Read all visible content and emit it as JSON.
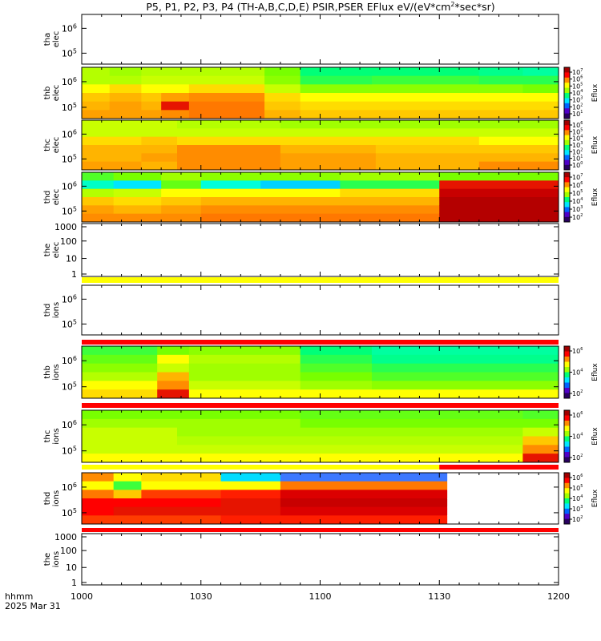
{
  "chart_data": {
    "type": "heatmap",
    "title": "P5, P1, P2, P3, P4 (TH-A,B,C,D,E) PSIR,PSER EFlux eV/(eV*cm",
    "title_sup": "2",
    "title_tail": "*sec*sr)",
    "x_axis": {
      "ticks": [
        "1000",
        "1030",
        "1100",
        "1130",
        "1200"
      ],
      "tick_minutes": [
        0,
        30,
        60,
        90,
        120
      ],
      "range_minutes": [
        0,
        120
      ],
      "label_line1": "hhmm",
      "label_line2": "2025 Mar 31"
    },
    "colorbar_label": "Eflux",
    "panels": [
      {
        "label1": "tha",
        "label2": "elec",
        "yticks": [
          "10",
          "10"
        ],
        "ysup": [
          "6",
          "5"
        ],
        "filled": false,
        "colorbar": null
      },
      {
        "label1": "thb",
        "label2": "elec",
        "yticks": [
          "10",
          "10"
        ],
        "ysup": [
          "6",
          "5"
        ],
        "filled": true,
        "colorbar": {
          "ticks": [
            "10",
            "10",
            "10",
            "10",
            "10",
            "10",
            "10"
          ],
          "sup": [
            "7",
            "6",
            "5",
            "4",
            "3",
            "2",
            "1"
          ]
        },
        "bins": [
          {
            "t0": 0,
            "t1": 7,
            "rows": [
              "#b4ff00",
              "#b4ff00",
              "#ffff00",
              "#ffc800",
              "#ffb400",
              "#ffa000"
            ]
          },
          {
            "t0": 7,
            "t1": 15,
            "rows": [
              "#a0ff00",
              "#b4ff00",
              "#ffdc00",
              "#ffb400",
              "#ffa000",
              "#ffa000"
            ]
          },
          {
            "t0": 15,
            "t1": 20,
            "rows": [
              "#b4ff00",
              "#c8ff00",
              "#ffff00",
              "#ffc800",
              "#ffb400",
              "#ffa000"
            ]
          },
          {
            "t0": 20,
            "t1": 27,
            "rows": [
              "#b4ff00",
              "#c8ff00",
              "#ffff00",
              "#ffa000",
              "#e61400",
              "#ff8c00"
            ]
          },
          {
            "t0": 27,
            "t1": 46,
            "rows": [
              "#b4ff00",
              "#c8ff00",
              "#ffdc00",
              "#ff8c00",
              "#ff7800",
              "#ff7800"
            ]
          },
          {
            "t0": 46,
            "t1": 55,
            "rows": [
              "#78ff00",
              "#8cff00",
              "#c8ff00",
              "#ffdc00",
              "#ffc800",
              "#ffb400"
            ]
          },
          {
            "t0": 55,
            "t1": 73,
            "rows": [
              "#00ff78",
              "#28ff50",
              "#8cff00",
              "#ffff00",
              "#ffdc00",
              "#ffc800"
            ]
          },
          {
            "t0": 73,
            "t1": 100,
            "rows": [
              "#00ff78",
              "#3cff3c",
              "#8cff00",
              "#ffff00",
              "#ffdc00",
              "#ffc800"
            ]
          },
          {
            "t0": 100,
            "t1": 111,
            "rows": [
              "#00ff8c",
              "#28ff50",
              "#8cff00",
              "#ffff00",
              "#ffdc00",
              "#ffc800"
            ]
          },
          {
            "t0": 111,
            "t1": 120,
            "rows": [
              "#00ffa0",
              "#28ff50",
              "#78ff00",
              "#ffff00",
              "#ffdc00",
              "#ffc800"
            ]
          }
        ]
      },
      {
        "label1": "thc",
        "label2": "elec",
        "yticks": [
          "10",
          "10"
        ],
        "ysup": [
          "6",
          "5"
        ],
        "filled": true,
        "colorbar": {
          "ticks": [
            "10",
            "10",
            "10",
            "10",
            "10",
            "10",
            "10"
          ],
          "sup": [
            "6",
            "5",
            "4",
            "3",
            "2",
            "1",
            "0"
          ]
        },
        "bins": [
          {
            "t0": 0,
            "t1": 15,
            "rows": [
              "#c8ff00",
              "#c8ff00",
              "#ffdc00",
              "#ffb400",
              "#ffb400",
              "#ffa000"
            ]
          },
          {
            "t0": 15,
            "t1": 24,
            "rows": [
              "#c8ff00",
              "#c8ff00",
              "#ffc800",
              "#ffb400",
              "#ffa000",
              "#ffb400"
            ]
          },
          {
            "t0": 24,
            "t1": 50,
            "rows": [
              "#b4ff00",
              "#c8ff00",
              "#ffdc00",
              "#ff8c00",
              "#ff8c00",
              "#ff8c00"
            ]
          },
          {
            "t0": 50,
            "t1": 74,
            "rows": [
              "#a0ff00",
              "#c8ff00",
              "#ffdc00",
              "#ffb400",
              "#ffa000",
              "#ffa000"
            ]
          },
          {
            "t0": 74,
            "t1": 100,
            "rows": [
              "#a0ff00",
              "#c8ff00",
              "#ffdc00",
              "#ffc800",
              "#ffb400",
              "#ffb400"
            ]
          },
          {
            "t0": 100,
            "t1": 120,
            "rows": [
              "#a0ff00",
              "#c8ff00",
              "#ffff00",
              "#ffc800",
              "#ffb400",
              "#ff8c00"
            ]
          }
        ]
      },
      {
        "label1": "thd",
        "label2": "elec",
        "yticks": [
          "10",
          "10"
        ],
        "ysup": [
          "6",
          "5"
        ],
        "filled": true,
        "colorbar": {
          "ticks": [
            "10",
            "10",
            "10",
            "10",
            "10",
            "10"
          ],
          "sup": [
            "7",
            "6",
            "5",
            "4",
            "3",
            "2"
          ]
        },
        "bins": [
          {
            "t0": 0,
            "t1": 8,
            "rows": [
              "#50ff28",
              "#00ffc8",
              "#b4ff00",
              "#ffc800",
              "#ffa000",
              "#ff8c00"
            ]
          },
          {
            "t0": 8,
            "t1": 20,
            "rows": [
              "#78ff00",
              "#00e6ff",
              "#c8ff00",
              "#ffdc00",
              "#ffb400",
              "#ff8c00"
            ]
          },
          {
            "t0": 20,
            "t1": 30,
            "rows": [
              "#a0ff00",
              "#64ff14",
              "#ffff00",
              "#ffc800",
              "#ffa000",
              "#ff8c00"
            ]
          },
          {
            "t0": 30,
            "t1": 45,
            "rows": [
              "#8cff00",
              "#00ffdc",
              "#ffff00",
              "#ffb400",
              "#ff8c00",
              "#ff7800"
            ]
          },
          {
            "t0": 45,
            "t1": 65,
            "rows": [
              "#8cff00",
              "#00d2ff",
              "#ffff00",
              "#ffb400",
              "#ff8c00",
              "#ff7800"
            ]
          },
          {
            "t0": 65,
            "t1": 90,
            "rows": [
              "#a0ff00",
              "#28ff50",
              "#ffdc00",
              "#ffb400",
              "#ff8c00",
              "#ff7800"
            ]
          },
          {
            "t0": 90,
            "t1": 120,
            "rows": [
              "#78ff00",
              "#e61400",
              "#c80000",
              "#b40000",
              "#b40000",
              "#b40000"
            ]
          }
        ]
      },
      {
        "label1": "the",
        "label2": "elec",
        "yticks": [
          "1000",
          "100",
          "10",
          "1"
        ],
        "filled": false,
        "colorbar": null,
        "bottom_bar": "#ffff00"
      },
      {
        "label1": "thd",
        "label2": "ions",
        "yticks": [
          "10",
          "10"
        ],
        "ysup": [
          "6",
          "5"
        ],
        "filled": false,
        "colorbar": null,
        "bottom_bar": "#ff0000"
      },
      {
        "label1": "thb",
        "label2": "ions",
        "yticks": [
          "10",
          "10"
        ],
        "ysup": [
          "6",
          "5"
        ],
        "filled": true,
        "colorbar": {
          "ticks": [
            "10",
            "10",
            "10"
          ],
          "sup": [
            "6",
            "4",
            "2"
          ]
        },
        "bins": [
          {
            "t0": 0,
            "t1": 19,
            "rows": [
              "#3cff3c",
              "#64ff14",
              "#8cff00",
              "#b4ff00",
              "#ffff00",
              "#ffdc00"
            ]
          },
          {
            "t0": 19,
            "t1": 27,
            "rows": [
              "#78ff00",
              "#ffff00",
              "#c8ff00",
              "#ffb400",
              "#ff8c00",
              "#e61400"
            ]
          },
          {
            "t0": 27,
            "t1": 55,
            "rows": [
              "#8cff00",
              "#b4ff00",
              "#a0ff00",
              "#a0ff00",
              "#c8ff00",
              "#ffff00"
            ]
          },
          {
            "t0": 55,
            "t1": 73,
            "rows": [
              "#00ff78",
              "#28ff50",
              "#50ff28",
              "#78ff00",
              "#a0ff00",
              "#ffff00"
            ]
          },
          {
            "t0": 73,
            "t1": 120,
            "rows": [
              "#00ffa0",
              "#00ff8c",
              "#28ff50",
              "#50ff28",
              "#8cff00",
              "#ffff00"
            ]
          }
        ],
        "bottom_bar": "#ff0000"
      },
      {
        "label1": "thc",
        "label2": "ions",
        "yticks": [
          "10",
          "10"
        ],
        "ysup": [
          "6",
          "5"
        ],
        "filled": true,
        "colorbar": {
          "ticks": [
            "10",
            "10",
            "10"
          ],
          "sup": [
            "6",
            "4",
            "2"
          ]
        },
        "bins": [
          {
            "t0": 0,
            "t1": 24,
            "rows": [
              "#78ff00",
              "#a0ff00",
              "#c8ff00",
              "#c8ff00",
              "#c8ff00",
              "#ffff00"
            ]
          },
          {
            "t0": 24,
            "t1": 55,
            "rows": [
              "#78ff00",
              "#a0ff00",
              "#a0ff00",
              "#b4ff00",
              "#c8ff00",
              "#ffff00"
            ]
          },
          {
            "t0": 55,
            "t1": 111,
            "rows": [
              "#64ff14",
              "#78ff00",
              "#a0ff00",
              "#b4ff00",
              "#c8ff00",
              "#ffff00"
            ]
          },
          {
            "t0": 111,
            "t1": 120,
            "rows": [
              "#50ff28",
              "#78ff00",
              "#c8ff00",
              "#ffc800",
              "#ff8c00",
              "#e61400"
            ]
          }
        ],
        "bottom_bar": "#ffff00"
      },
      {
        "label1": "thd",
        "label2": "ions",
        "yticks": [
          "10",
          "10"
        ],
        "ysup": [
          "6",
          "5"
        ],
        "filled": true,
        "colorbar": {
          "ticks": [
            "10",
            "10",
            "10",
            "10",
            "10"
          ],
          "sup": [
            "6",
            "5",
            "4",
            "3",
            "2"
          ]
        },
        "bins": [
          {
            "t0": 0,
            "t1": 8,
            "rows": [
              "#ff8c00",
              "#ffff00",
              "#ff7800",
              "#ff0000",
              "#ff0000",
              "#ff3c00"
            ]
          },
          {
            "t0": 8,
            "t1": 15,
            "rows": [
              "#ffff00",
              "#3cff3c",
              "#ffc800",
              "#ff0000",
              "#e61400",
              "#ff3c00"
            ]
          },
          {
            "t0": 15,
            "t1": 35,
            "rows": [
              "#ffdc00",
              "#ffff00",
              "#ff3c00",
              "#ff0000",
              "#e61400",
              "#ff3c00"
            ]
          },
          {
            "t0": 35,
            "t1": 50,
            "rows": [
              "#00dcff",
              "#ffff00",
              "#ff1e00",
              "#e61400",
              "#e61400",
              "#ff1e00"
            ]
          },
          {
            "t0": 50,
            "t1": 92,
            "rows": [
              "#3c78ff",
              "#ff7800",
              "#dc0000",
              "#c80000",
              "#dc0000",
              "#ff1e00"
            ]
          },
          {
            "t0": 92,
            "t1": 120,
            "rows": [
              "#ffffff",
              "#ffffff",
              "#ffffff",
              "#ffffff",
              "#ffffff",
              "#ffffff"
            ]
          }
        ],
        "bottom_bar": "#ff0000"
      },
      {
        "label1": "the",
        "label2": "ions",
        "yticks": [
          "1000",
          "100",
          "10",
          "1"
        ],
        "filled": false,
        "colorbar": null
      }
    ]
  }
}
